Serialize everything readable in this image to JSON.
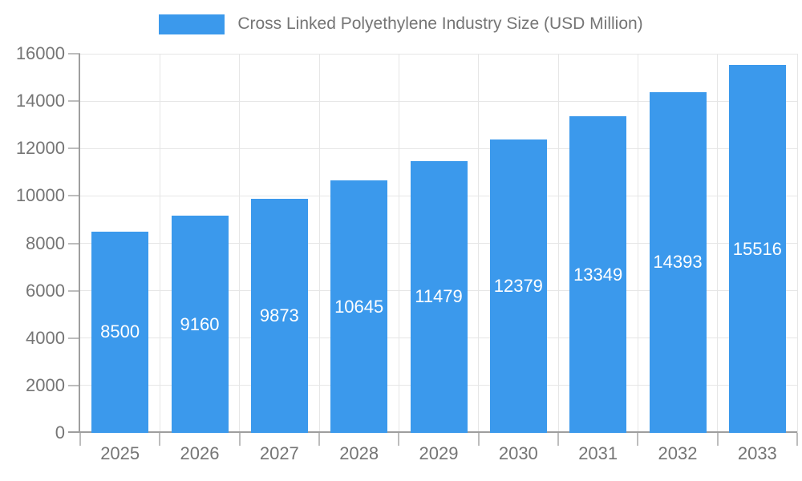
{
  "legend": {
    "label": "Cross Linked Polyethylene Industry Size (USD Million)",
    "swatch_color": "#3B99EC"
  },
  "chart_data": {
    "type": "bar",
    "title": "Cross Linked Polyethylene Industry Size (USD Million)",
    "series_name": "Cross Linked Polyethylene Industry Size (USD Million)",
    "categories": [
      "2025",
      "2026",
      "2027",
      "2028",
      "2029",
      "2030",
      "2031",
      "2032",
      "2033"
    ],
    "values": [
      8500,
      9160,
      9873,
      10645,
      11479,
      12379,
      13349,
      14393,
      15516
    ],
    "xlabel": "",
    "ylabel": "",
    "ylim": [
      0,
      16000
    ],
    "y_ticks": [
      0,
      2000,
      4000,
      6000,
      8000,
      10000,
      12000,
      14000,
      16000
    ],
    "grid": "on",
    "legend_position": "top-center",
    "bar_color": "#3B99EC",
    "value_label_color": "#FFFFFF",
    "axis_label_color": "#757575",
    "gridline_color": "#E6E6E6",
    "axis_line_color": "#9E9E9E"
  }
}
